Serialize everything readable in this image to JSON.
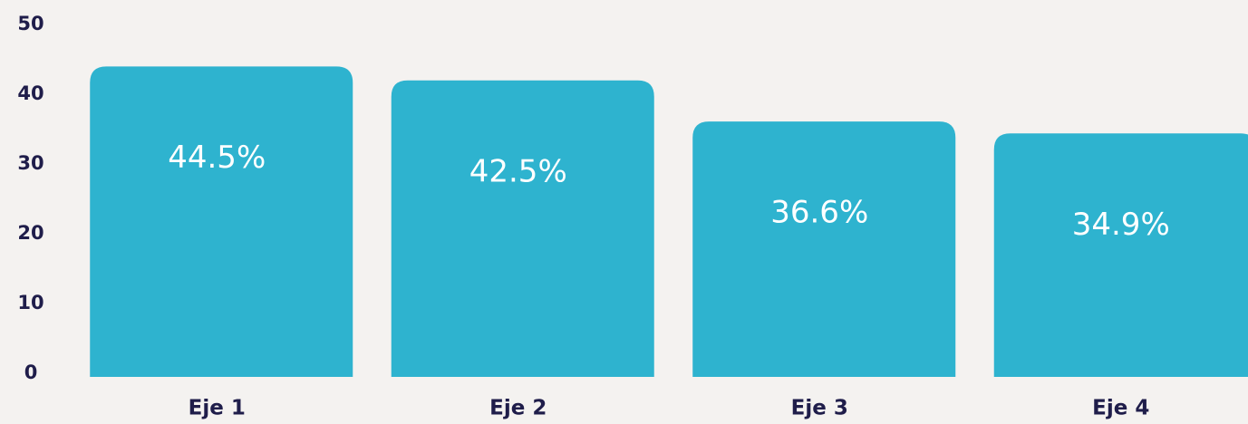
{
  "chart_data": {
    "type": "bar",
    "categories": [
      "Eje 1",
      "Eje 2",
      "Eje 3",
      "Eje 4"
    ],
    "values": [
      44.5,
      42.5,
      36.6,
      34.9
    ],
    "value_labels": [
      "44.5%",
      "42.5%",
      "36.6%",
      "34.9%"
    ],
    "color": "#2eb3cf",
    "ylim": [
      0,
      50
    ],
    "yticks": [
      0,
      10,
      20,
      30,
      40,
      50
    ],
    "grid": false
  }
}
